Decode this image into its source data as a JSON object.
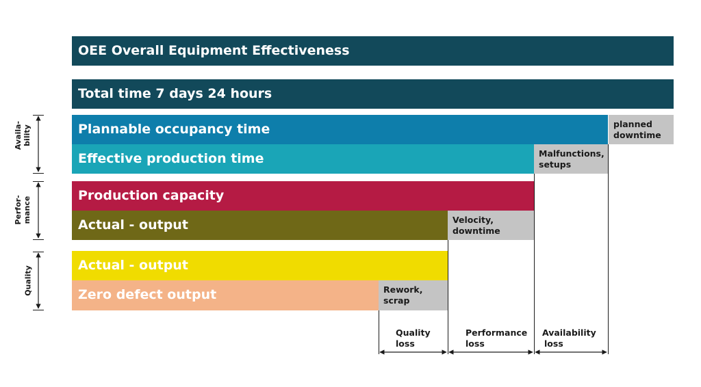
{
  "bars": {
    "oee": {
      "label": "OEE Overall Equipment Effectiveness",
      "color": "#12495a"
    },
    "total_time": {
      "label": "Total time 7 days 24 hours",
      "color": "#12495a"
    },
    "plannable": {
      "label": "Plannable occupancy time",
      "color": "#0e7eab"
    },
    "effective": {
      "label": "Effective production time",
      "color": "#1aa5b7"
    },
    "capacity": {
      "label": "Production capacity",
      "color": "#b51b44"
    },
    "actual_perf": {
      "label": "Actual - output",
      "color": "#6f6817"
    },
    "actual_quality": {
      "label": "Actual - output",
      "color": "#f0dc00"
    },
    "zero_defect": {
      "label": "Zero defect output",
      "color": "#f4b388"
    }
  },
  "losses": {
    "planned": {
      "line1": "planned",
      "line2": "downtime"
    },
    "malfunctions": {
      "line1": "Malfunctions,",
      "line2": "setups"
    },
    "velocity": {
      "line1": "Velocity,",
      "line2": "downtime"
    },
    "rework": {
      "line1": "Rework,",
      "line2": "scrap"
    }
  },
  "side_labels": {
    "availability": {
      "line1": "Availa-",
      "line2": "bility"
    },
    "performance": {
      "line1": "Perfor-",
      "line2": "mance"
    },
    "quality": {
      "line1": "Quality"
    }
  },
  "bottom_labels": {
    "quality_loss": {
      "line1": "Quality",
      "line2": "loss"
    },
    "performance_loss": {
      "line1": "Performance",
      "line2": "loss"
    },
    "availability_loss": {
      "line1": "Availability",
      "line2": "loss"
    }
  }
}
